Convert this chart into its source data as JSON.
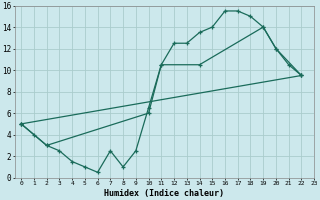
{
  "bg_color": "#cce8ec",
  "grid_color": "#aacccc",
  "line_color": "#1a6b5a",
  "xlabel": "Humidex (Indice chaleur)",
  "xlim": [
    -0.5,
    23
  ],
  "ylim": [
    0,
    16
  ],
  "xticks": [
    0,
    1,
    2,
    3,
    4,
    5,
    6,
    7,
    8,
    9,
    10,
    11,
    12,
    13,
    14,
    15,
    16,
    17,
    18,
    19,
    20,
    21,
    22,
    23
  ],
  "yticks": [
    0,
    2,
    4,
    6,
    8,
    10,
    12,
    14,
    16
  ],
  "line1_x": [
    0,
    1,
    2,
    3,
    4,
    5,
    6,
    7,
    8,
    9,
    10,
    11,
    12,
    13,
    14,
    15,
    16,
    17,
    18,
    19,
    20,
    21,
    22
  ],
  "line1_y": [
    5,
    4,
    3,
    2.5,
    1.5,
    1.0,
    0.5,
    2.5,
    1.0,
    2.5,
    6.5,
    10.5,
    12.5,
    12.5,
    13.5,
    14.0,
    15.5,
    15.5,
    15.0,
    14.0,
    12.0,
    10.5,
    9.5
  ],
  "line2_x": [
    0,
    22
  ],
  "line2_y": [
    5,
    9.5
  ],
  "line3_x": [
    0,
    2,
    10,
    11,
    14,
    19,
    20,
    22
  ],
  "line3_y": [
    5,
    3,
    6.0,
    10.5,
    10.5,
    14.0,
    12.0,
    9.5
  ]
}
